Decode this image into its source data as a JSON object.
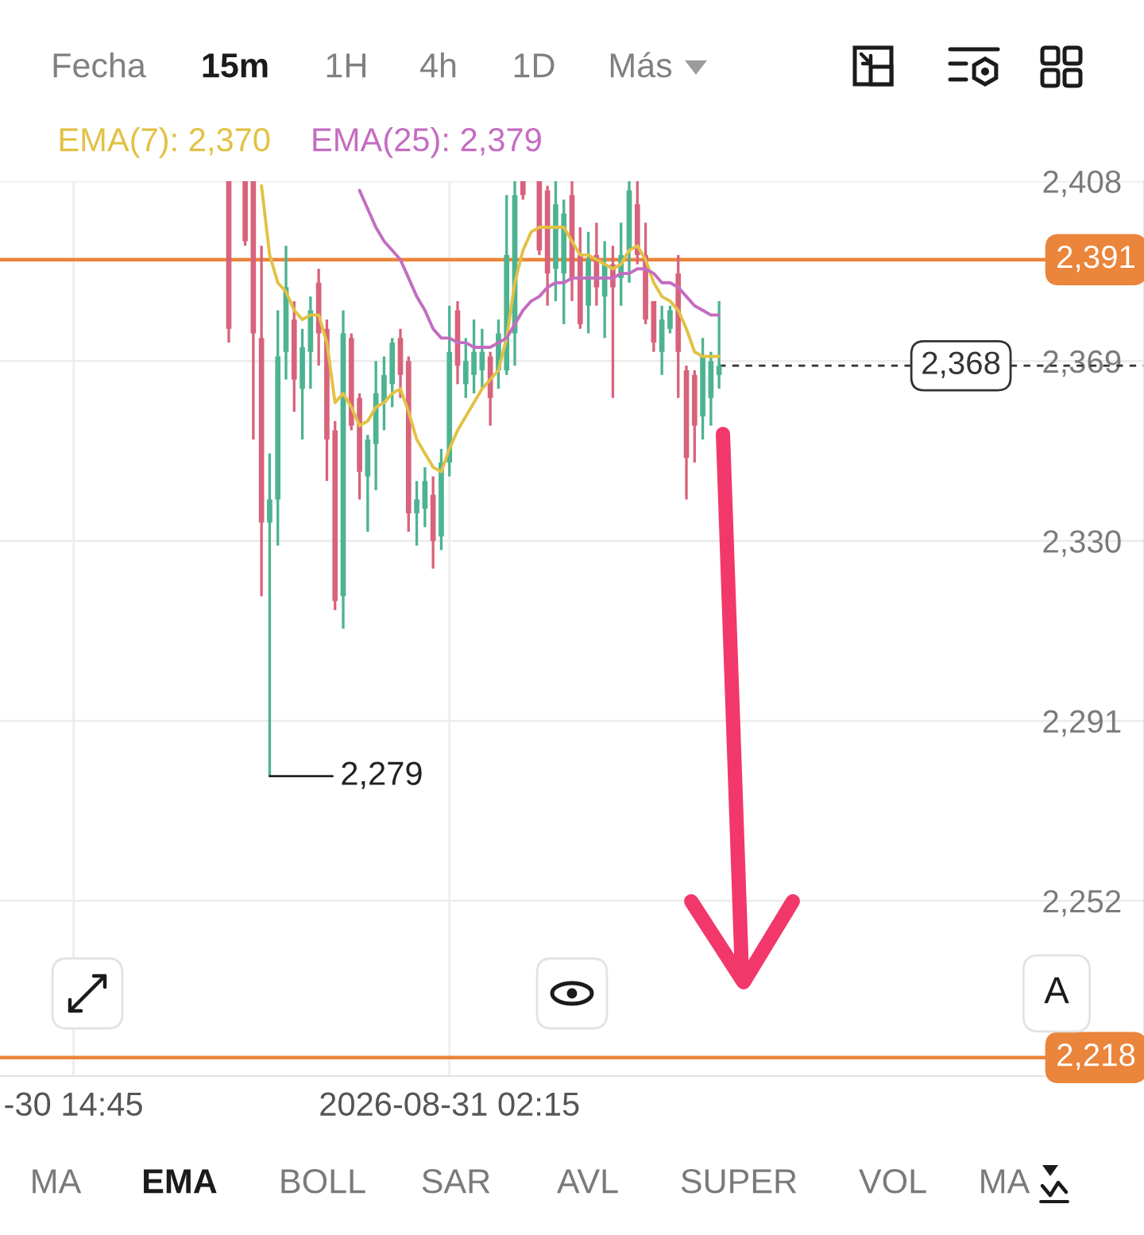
{
  "chart_data": {
    "type": "candlestick",
    "x": [
      "2026-08-30T19:30",
      "2026-08-30T19:45",
      "2026-08-30T20:00",
      "2026-08-30T20:15",
      "2026-08-30T20:30",
      "2026-08-30T20:45",
      "2026-08-30T21:00",
      "2026-08-30T21:15",
      "2026-08-30T21:30",
      "2026-08-30T21:45",
      "2026-08-30T22:00",
      "2026-08-30T22:15",
      "2026-08-30T22:30",
      "2026-08-30T22:45",
      "2026-08-30T23:00",
      "2026-08-30T23:15",
      "2026-08-30T23:30",
      "2026-08-30T23:45",
      "2026-08-31T00:00",
      "2026-08-31T00:15",
      "2026-08-31T00:30",
      "2026-08-31T00:45",
      "2026-08-31T01:00",
      "2026-08-31T01:15",
      "2026-08-31T01:30",
      "2026-08-31T01:45",
      "2026-08-31T02:00",
      "2026-08-31T02:15",
      "2026-08-31T02:30",
      "2026-08-31T02:45",
      "2026-08-31T03:00",
      "2026-08-31T03:15",
      "2026-08-31T03:30",
      "2026-08-31T03:45",
      "2026-08-31T04:00",
      "2026-08-31T04:15",
      "2026-08-31T04:30",
      "2026-08-31T04:45",
      "2026-08-31T05:00",
      "2026-08-31T05:15",
      "2026-08-31T05:30",
      "2026-08-31T05:45",
      "2026-08-31T06:00",
      "2026-08-31T06:15",
      "2026-08-31T06:30",
      "2026-08-31T06:45",
      "2026-08-31T07:00",
      "2026-08-31T07:15",
      "2026-08-31T07:30",
      "2026-08-31T07:45",
      "2026-08-31T08:00",
      "2026-08-31T08:15",
      "2026-08-31T08:30",
      "2026-08-31T08:45",
      "2026-08-31T09:00",
      "2026-08-31T09:15",
      "2026-08-31T09:30",
      "2026-08-31T09:45",
      "2026-08-31T10:00",
      "2026-08-31T10:15",
      "2026-08-31T10:30"
    ],
    "ohlc": [
      [
        2408,
        2408,
        2373,
        2376
      ],
      null,
      [
        2408,
        2408,
        2394,
        2395
      ],
      [
        2408,
        2408,
        2352,
        2375
      ],
      [
        2374,
        2394,
        2318,
        2334
      ],
      [
        2334,
        2349,
        2279,
        2339
      ],
      [
        2339,
        2380,
        2329,
        2370
      ],
      [
        2371,
        2394,
        2365,
        2385
      ],
      [
        2378,
        2382,
        2358,
        2365
      ],
      [
        2363,
        2376,
        2352,
        2372
      ],
      [
        2371,
        2383,
        2363,
        2380
      ],
      [
        2386,
        2389,
        2368,
        2375
      ],
      [
        2376,
        2378,
        2343,
        2352
      ],
      [
        2354,
        2356,
        2315,
        2317
      ],
      [
        2318,
        2380,
        2311,
        2375
      ],
      [
        2374,
        2375,
        2354,
        2355
      ],
      [
        2361,
        2362,
        2339,
        2345
      ],
      [
        2344,
        2353,
        2332,
        2352
      ],
      [
        2351,
        2369,
        2341,
        2362
      ],
      [
        2360,
        2370,
        2354,
        2366
      ],
      [
        2364,
        2374,
        2359,
        2373
      ],
      [
        2374,
        2376,
        2361,
        2366
      ],
      [
        2369,
        2370,
        2332,
        2336
      ],
      [
        2336,
        2343,
        2329,
        2339
      ],
      [
        2337,
        2346,
        2333,
        2343
      ],
      [
        2340,
        2344,
        2324,
        2330
      ],
      [
        2331,
        2350,
        2328,
        2347
      ],
      [
        2347,
        2381,
        2344,
        2371
      ],
      [
        2380,
        2382,
        2364,
        2368
      ],
      [
        2364,
        2374,
        2361,
        2369
      ],
      [
        2366,
        2378,
        2362,
        2371
      ],
      [
        2367,
        2376,
        2363,
        2371
      ],
      [
        2370,
        2371,
        2355,
        2361
      ],
      [
        2367,
        2378,
        2363,
        2375
      ],
      [
        2367,
        2405,
        2366,
        2392
      ],
      [
        2375,
        2408,
        2368,
        2405
      ],
      [
        2408,
        2408,
        2404,
        2405
      ],
      null,
      [
        2408,
        2408,
        2392,
        2393
      ],
      [
        2406,
        2407,
        2381,
        2388
      ],
      [
        2389,
        2408,
        2382,
        2403
      ],
      [
        2388,
        2404,
        2377,
        2401
      ],
      [
        2405,
        2408,
        2382,
        2387
      ],
      [
        2392,
        2398,
        2376,
        2377
      ],
      [
        2381,
        2397,
        2375,
        2391
      ],
      [
        2392,
        2399,
        2381,
        2385
      ],
      [
        2383,
        2395,
        2374,
        2390
      ],
      [
        2390,
        2394,
        2361,
        2385
      ],
      [
        2387,
        2399,
        2381,
        2392
      ],
      [
        2393,
        2408,
        2386,
        2406
      ],
      [
        2403,
        2408,
        2390,
        2392
      ],
      [
        2392,
        2399,
        2377,
        2378
      ],
      [
        2382,
        2382,
        2371,
        2373
      ],
      [
        2371,
        2381,
        2366,
        2378
      ],
      [
        2376,
        2381,
        2375,
        2380
      ],
      [
        2388,
        2392,
        2361,
        2371
      ],
      [
        2367,
        2368,
        2339,
        2348
      ],
      [
        2366,
        2367,
        2347,
        2355
      ],
      [
        2357,
        2374,
        2352,
        2370
      ],
      [
        2361,
        2371,
        2355,
        2369
      ],
      [
        2366,
        2382,
        2363,
        2368
      ]
    ],
    "colors": [
      "#d8637b",
      null,
      "#d8637b",
      "#d8637b",
      "#d8637b",
      "#4db391",
      "#4db391",
      "#4db391",
      "#d8637b",
      "#4db391",
      "#4db391",
      "#d8637b",
      "#d8637b",
      "#d8637b",
      "#4db391",
      "#d8637b",
      "#d8637b",
      "#4db391",
      "#4db391",
      "#4db391",
      "#4db391",
      "#d8637b",
      "#d8637b",
      "#4db391",
      "#4db391",
      "#d8637b",
      "#4db391",
      "#4db391",
      "#d8637b",
      "#4db391",
      "#4db391",
      "#4db391",
      "#d8637b",
      "#4db391",
      "#4db391",
      "#4db391",
      "#d8637b",
      null,
      "#d8637b",
      "#d8637b",
      "#4db391",
      "#4db391",
      "#d8637b",
      "#d8637b",
      "#4db391",
      "#d8637b",
      "#4db391",
      "#d8637b",
      "#4db391",
      "#4db391",
      "#d8637b",
      "#d8637b",
      "#d8637b",
      "#4db391",
      "#4db391",
      "#d8637b",
      "#d8637b",
      "#d8637b",
      "#4db391",
      "#4db391",
      "#4db391"
    ],
    "series": [
      {
        "type": "line",
        "name": "EMA(7): 2,370",
        "color": "#e2c144",
        "values": [
          null,
          null,
          null,
          null,
          2407,
          2392,
          2386,
          2384,
          2380,
          2378,
          2379,
          2379,
          2373,
          2360,
          2362,
          2359,
          2355,
          2356,
          2359,
          2360,
          2362,
          2363,
          2358,
          2352,
          2349,
          2346,
          2345,
          2350,
          2354,
          2357,
          2360,
          2363,
          2365,
          2367,
          2374,
          2386,
          2393,
          2397,
          2398,
          2398,
          2398,
          2398,
          2395,
          2392,
          2392,
          2391,
          2390,
          2389,
          2390,
          2393,
          2394,
          2391,
          2386,
          2383,
          2382,
          2380,
          2376,
          2371,
          2370,
          2370,
          2370
        ]
      },
      {
        "type": "line",
        "name": "EMA(25): 2,379",
        "color": "#c46cc0",
        "values": [
          null,
          null,
          null,
          null,
          null,
          null,
          null,
          null,
          null,
          null,
          null,
          null,
          null,
          null,
          null,
          null,
          2406,
          2402,
          2398,
          2395,
          2393,
          2391,
          2387,
          2383,
          2380,
          2376,
          2374,
          2374,
          2373,
          2373,
          2372,
          2372,
          2372,
          2373,
          2374,
          2377,
          2380,
          2382,
          2383,
          2385,
          2386,
          2386,
          2387,
          2387,
          2387,
          2387,
          2387,
          2387,
          2388,
          2388,
          2389,
          2389,
          2388,
          2386,
          2386,
          2385,
          2383,
          2381,
          2380,
          2379,
          2379
        ]
      }
    ],
    "xlim": [
      "2026-08-30T12:30",
      "2026-08-31T23:30"
    ],
    "xticks": [
      {
        "value": "2026-08-30T14:45",
        "label": "-30 14:45"
      },
      {
        "value": "2026-08-31T02:15",
        "label": "2026-08-31 02:15"
      }
    ],
    "ylim": [
      2214,
      2408
    ],
    "yticks": [
      {
        "value": 2252,
        "label": "2,252"
      },
      {
        "value": 2291,
        "label": "2,291"
      },
      {
        "value": 2330,
        "label": "2,330"
      },
      {
        "value": 2369,
        "label": "2,369"
      },
      {
        "value": 2408,
        "label": "2,408"
      }
    ],
    "ref_lines": [
      {
        "axis": "y",
        "value": 2391,
        "label": "2,391",
        "color": "#ea853b"
      },
      {
        "axis": "y",
        "value": 2218,
        "label": "2,218",
        "color": "#ea853b"
      },
      {
        "axis": "y",
        "value": 2368,
        "label": "2,368",
        "color": "#333333",
        "line_style": "dashed"
      }
    ],
    "annotations": [
      {
        "text": "2,279",
        "x": "2026-08-30T20:45",
        "y": 2279
      },
      "Fecha",
      "15m",
      "1H",
      "4h",
      "1D",
      "Más",
      "MA",
      "EMA",
      "BOLL",
      "SAR",
      "AVL",
      "SUPER",
      "VOL",
      "MA",
      "A"
    ],
    "grid": true,
    "legend": "top left"
  }
}
